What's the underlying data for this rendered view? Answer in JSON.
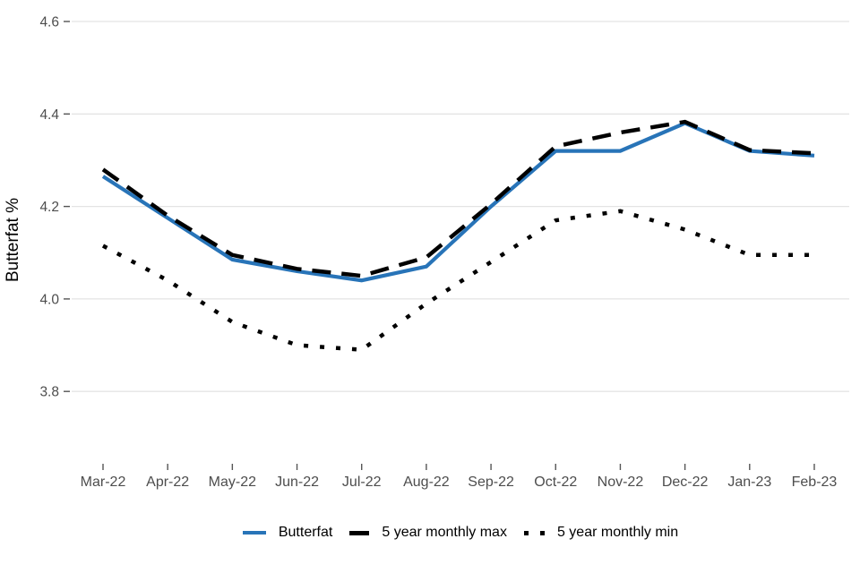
{
  "chart_data": {
    "type": "line",
    "title": "",
    "xlabel": "",
    "ylabel": "Butterfat %",
    "categories": [
      "Mar-22",
      "Apr-22",
      "May-22",
      "Jun-22",
      "Jul-22",
      "Aug-22",
      "Sep-22",
      "Oct-22",
      "Nov-22",
      "Dec-22",
      "Jan-23",
      "Feb-23"
    ],
    "y_ticks": [
      3.8,
      4.0,
      4.2,
      4.4,
      4.6
    ],
    "ylim": [
      3.65,
      4.62
    ],
    "grid": "horizontal-only",
    "legend_position": "bottom-center",
    "series": [
      {
        "name": "Butterfat",
        "style": "solid",
        "color": "#2874b8",
        "values": [
          4.265,
          4.175,
          4.085,
          4.06,
          4.04,
          4.07,
          4.2,
          4.32,
          4.32,
          4.38,
          4.32,
          4.31
        ]
      },
      {
        "name": "5 year monthly max",
        "style": "dashed",
        "color": "#000000",
        "values": [
          4.28,
          4.18,
          4.095,
          4.065,
          4.05,
          4.09,
          4.205,
          4.33,
          4.36,
          4.383,
          4.322,
          4.315
        ]
      },
      {
        "name": "5 year monthly min",
        "style": "dotted",
        "color": "#000000",
        "values": [
          4.115,
          4.04,
          3.95,
          3.9,
          3.89,
          3.99,
          4.08,
          4.17,
          4.19,
          4.15,
          4.095,
          4.095
        ]
      }
    ],
    "text_colors": {
      "tick_labels": "#4d4d4d",
      "axis_title": "#000000",
      "legend": "#000000"
    },
    "gridline_color": "#e4e4e4"
  }
}
